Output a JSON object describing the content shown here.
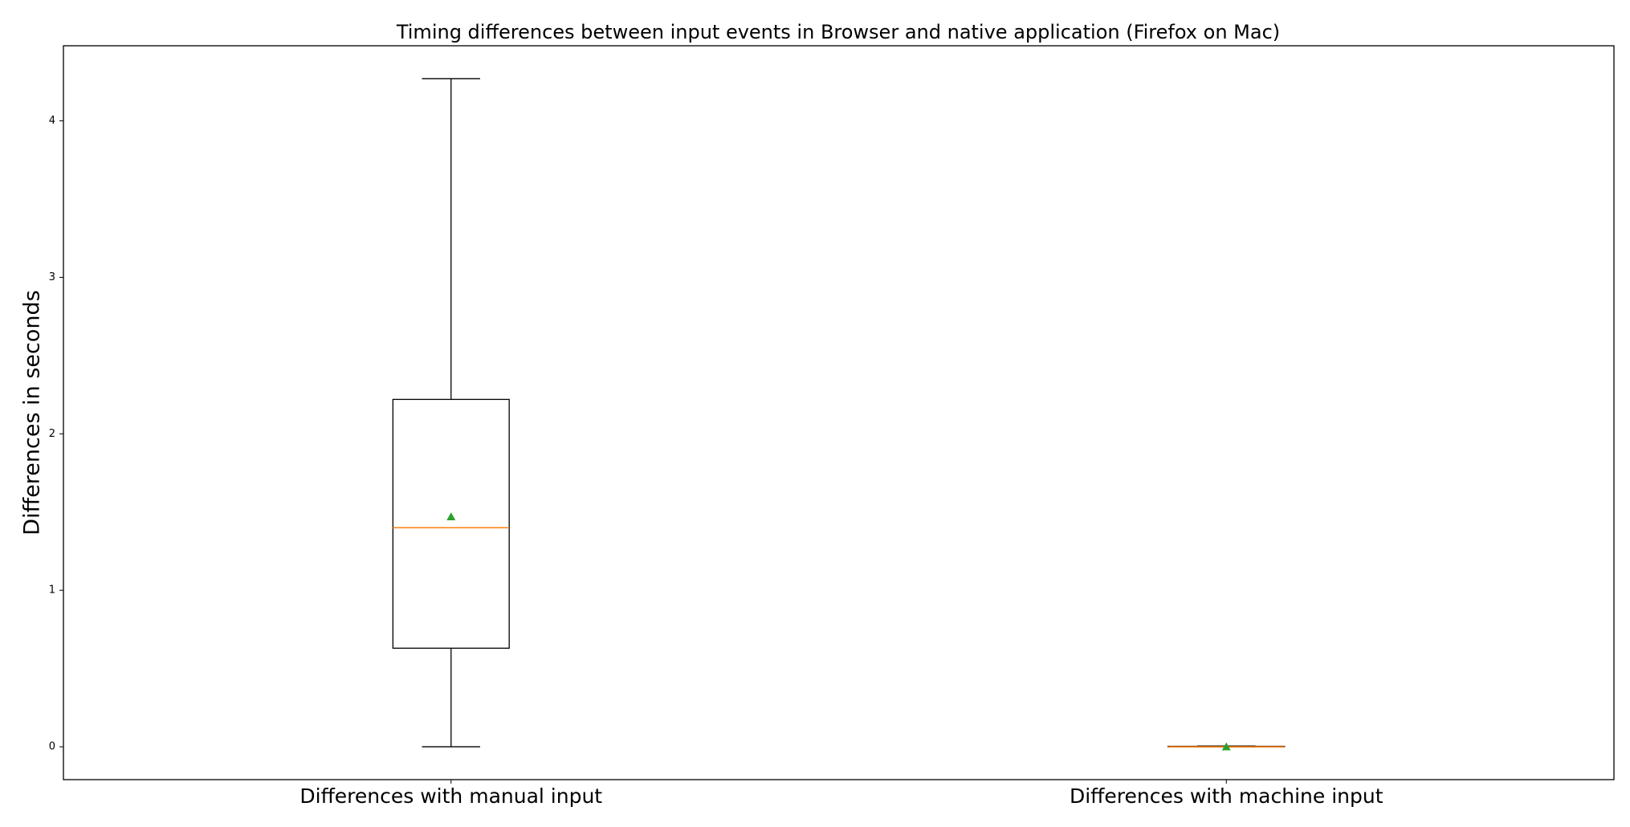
{
  "chart_data": {
    "type": "box",
    "title": "Timing differences between input events in Browser and native application (Firefox on Mac)",
    "ylabel": "Differences in seconds",
    "categories": [
      "Differences with manual input",
      "Differences with machine input"
    ],
    "boxes": [
      {
        "whislo": 0.0,
        "q1": 0.63,
        "med": 1.4,
        "q3": 2.22,
        "whishi": 4.27,
        "mean": 1.47
      },
      {
        "whislo": 0.0,
        "q1": 0.0,
        "med": 0.0,
        "q3": 0.003,
        "whishi": 0.005,
        "mean": 0.0
      }
    ],
    "ylim": [
      -0.21,
      4.48
    ],
    "yticks": [
      0,
      1,
      2,
      3,
      4
    ],
    "box_color": "#000000",
    "median_color": "#ff7f0e",
    "mean_color": "#2ca02c"
  }
}
